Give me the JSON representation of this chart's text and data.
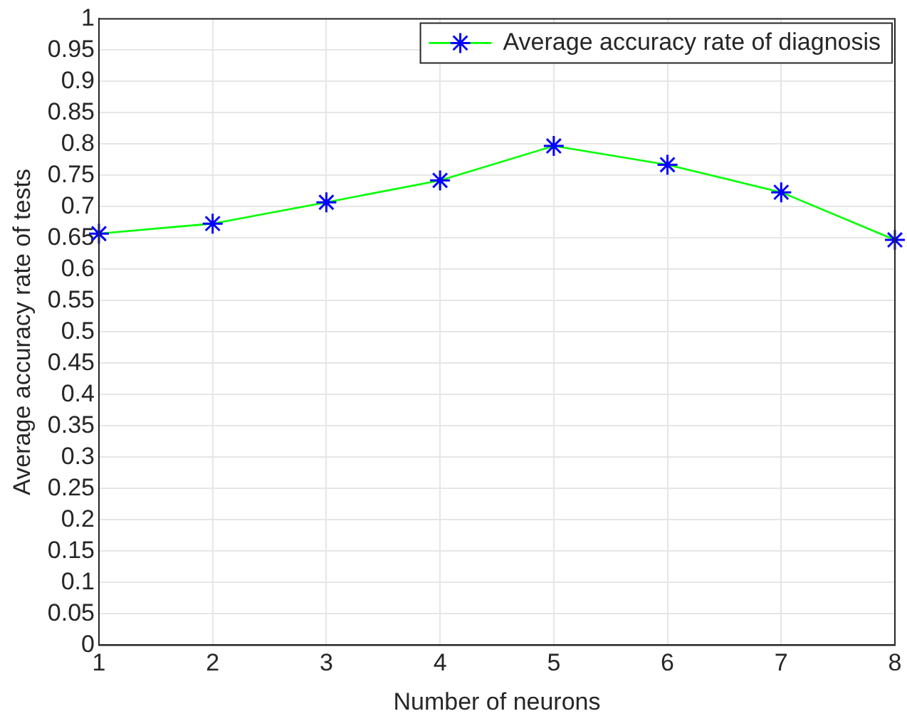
{
  "chart_data": {
    "type": "line",
    "xlabel": "Number of neurons",
    "ylabel": "Average accuracy rate of tests",
    "x": [
      1,
      2,
      3,
      4,
      5,
      6,
      7,
      8
    ],
    "series": [
      {
        "name": "Average accuracy rate of diagnosis",
        "color": "#00ff00",
        "colors": [
          "#0000ff",
          "#0000ff",
          "#0000ff",
          "#0000ff",
          "#0000ff",
          "#0000ff",
          "#0000ff",
          "#0000ff"
        ],
        "values": [
          0.657,
          0.673,
          0.707,
          0.742,
          0.797,
          0.767,
          0.723,
          0.647
        ]
      }
    ],
    "xlim": [
      1,
      8
    ],
    "xticks": [
      1,
      2,
      3,
      4,
      5,
      6,
      7,
      8
    ],
    "ylim": [
      0,
      1
    ],
    "yticks": [
      0,
      0.05,
      0.1,
      0.15,
      0.2,
      0.25,
      0.3,
      0.35,
      0.4,
      0.45,
      0.5,
      0.55,
      0.6,
      0.65,
      0.7,
      0.75,
      0.8,
      0.85,
      0.9,
      0.95,
      1
    ],
    "grid": true,
    "legend": "top right",
    "marker": "cross",
    "line_style": "solid"
  }
}
